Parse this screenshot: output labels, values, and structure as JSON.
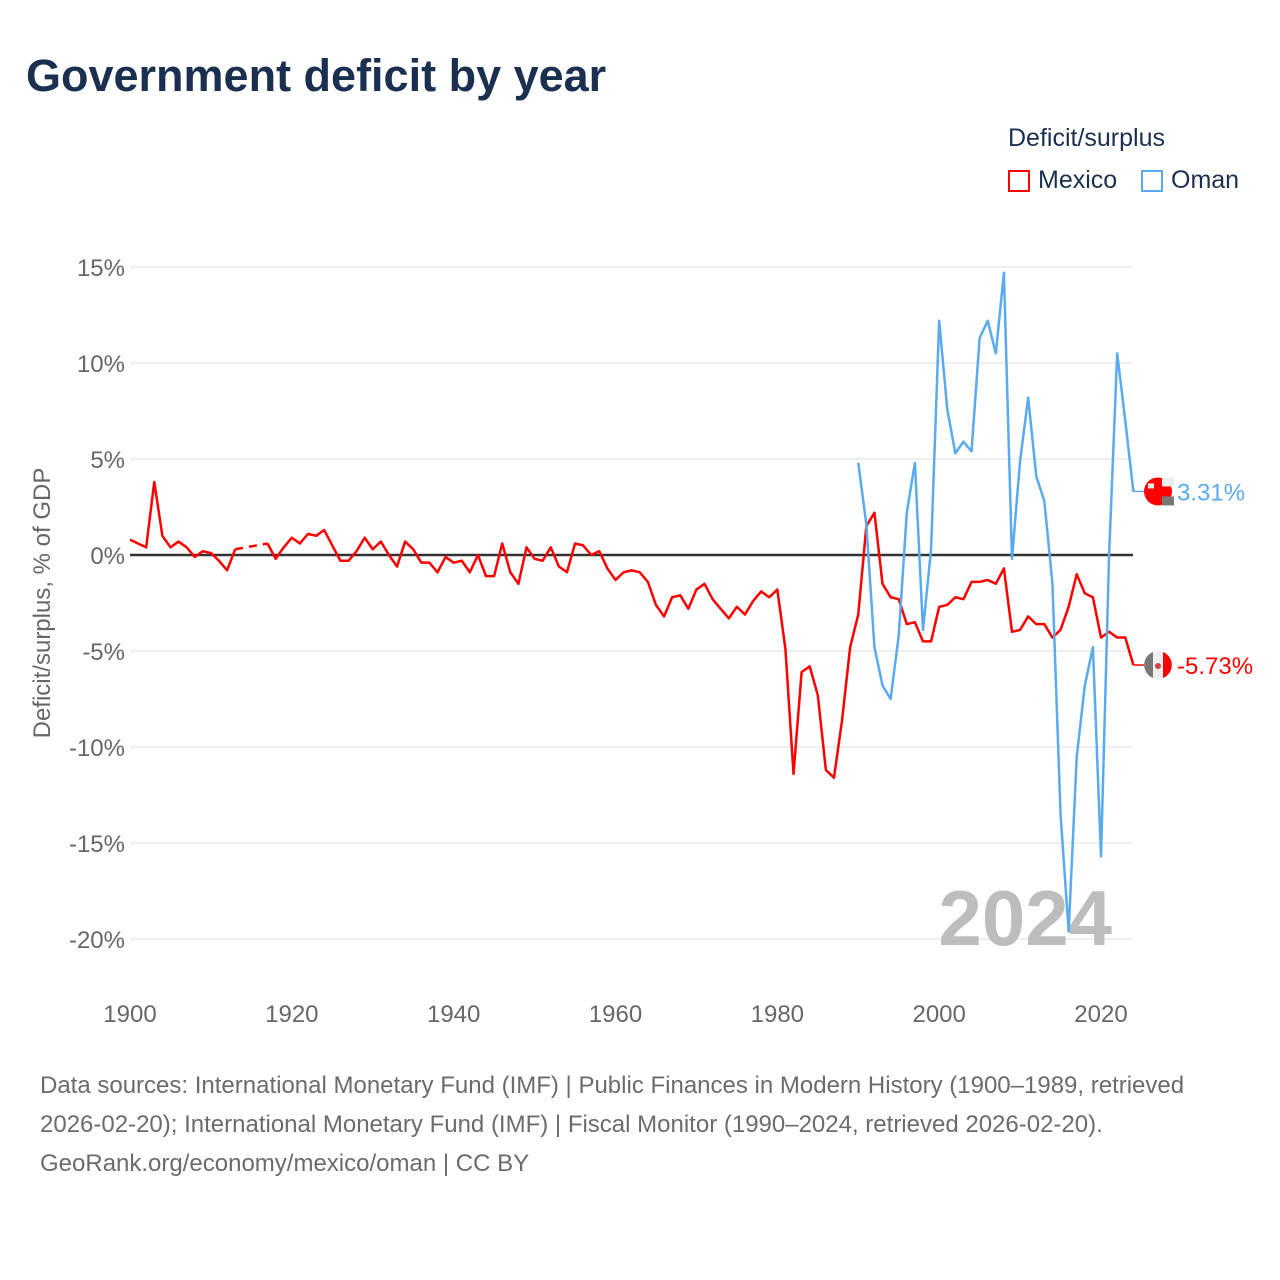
{
  "chart_data": {
    "type": "line",
    "title": "Government deficit by year",
    "xlabel": "",
    "ylabel": "Deficit/surplus, % of GDP",
    "xlim": [
      1900,
      2024
    ],
    "ylim": [
      -20,
      15
    ],
    "y_ticks": [
      15,
      10,
      5,
      0,
      -5,
      -10,
      -15,
      -20
    ],
    "y_tick_labels": [
      "15%",
      "10%",
      "5%",
      "0%",
      "-5%",
      "-10%",
      "-15%",
      "-20%"
    ],
    "x_ticks": [
      1900,
      1920,
      1940,
      1960,
      1980,
      2000,
      2020
    ],
    "x_tick_labels": [
      "1900",
      "1920",
      "1940",
      "1960",
      "1980",
      "2000",
      "2020"
    ],
    "grid": true,
    "legend_title": "Deficit/surplus",
    "legend_placement": "top-right",
    "year_label": "2024",
    "series": [
      {
        "name": "Mexico",
        "color": "#ff0000",
        "end_label": "-5.73%",
        "start_year": 1900,
        "values": [
          0.8,
          0.6,
          0.4,
          3.8,
          1.0,
          0.4,
          0.7,
          0.4,
          -0.1,
          0.2,
          0.1,
          -0.3,
          -0.8,
          0.3,
          null,
          null,
          null,
          0.6,
          -0.2,
          0.4,
          0.9,
          0.6,
          1.1,
          1.0,
          1.3,
          0.5,
          -0.3,
          -0.3,
          0.2,
          0.9,
          0.3,
          0.7,
          0.0,
          -0.6,
          0.7,
          0.3,
          -0.4,
          -0.4,
          -0.9,
          -0.1,
          -0.4,
          -0.3,
          -0.9,
          0.0,
          -1.1,
          -1.1,
          0.6,
          -0.9,
          -1.5,
          0.4,
          -0.2,
          -0.3,
          0.4,
          -0.6,
          -0.9,
          0.6,
          0.5,
          0.0,
          0.2,
          -0.7,
          -1.3,
          -0.9,
          -0.8,
          -0.9,
          -1.4,
          -2.6,
          -3.2,
          -2.2,
          -2.1,
          -2.8,
          -1.8,
          -1.5,
          -2.3,
          -2.8,
          -3.3,
          -2.7,
          -3.1,
          -2.4,
          -1.9,
          -2.2,
          -1.8,
          -4.9,
          -11.4,
          -6.1,
          -5.8,
          -7.3,
          -11.2,
          -11.6,
          -8.6,
          -4.8,
          -3.1,
          1.5,
          2.2,
          -1.5,
          -2.2,
          -2.3,
          -3.6,
          -3.5,
          -4.5,
          -4.5,
          -2.7,
          -2.6,
          -2.2,
          -2.3,
          -1.4,
          -1.4,
          -1.3,
          -1.5,
          -0.7,
          -4.0,
          -3.9,
          -3.2,
          -3.6,
          -3.6,
          -4.3,
          -3.9,
          -2.7,
          -1.0,
          -2.0,
          -2.2,
          -4.3,
          -4.0,
          -4.3,
          -4.3,
          -5.73
        ]
      },
      {
        "name": "Oman",
        "color": "#5aaaf0",
        "end_label": "3.31%",
        "start_year": 1990,
        "values": [
          4.8,
          1.6,
          -4.8,
          -6.8,
          -7.5,
          -4.2,
          2.2,
          4.8,
          -3.9,
          0.3,
          12.2,
          7.6,
          5.3,
          5.9,
          5.4,
          11.3,
          12.2,
          10.5,
          14.7,
          -0.2,
          4.9,
          8.2,
          4.1,
          2.8,
          -1.5,
          -13.5,
          -19.6,
          -10.5,
          -6.8,
          -4.8,
          -15.7,
          0.0,
          10.5,
          7.0,
          3.31
        ]
      }
    ]
  },
  "footer": {
    "sources": "Data sources: International Monetary Fund (IMF) | Public Finances in Modern History (1900–1989, retrieved 2026-02-20); International Monetary Fund (IMF) | Fiscal Monitor (1990–2024, retrieved 2026-02-20).",
    "credit": "GeoRank.org/economy/mexico/oman | CC BY"
  }
}
